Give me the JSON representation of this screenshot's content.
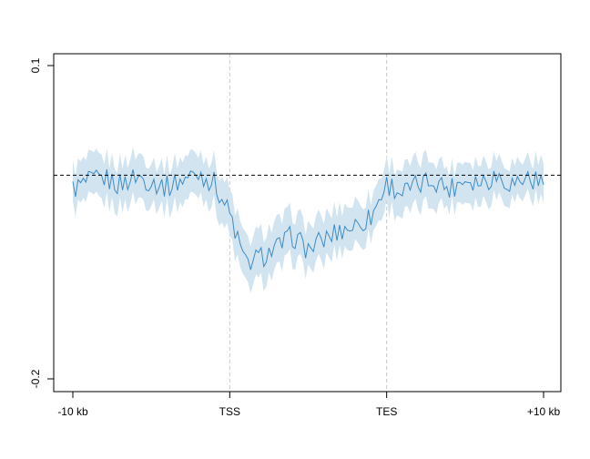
{
  "chart_data": {
    "type": "line",
    "title": "",
    "xlabel": "",
    "ylabel": "",
    "ylim": [
      -0.2,
      0.1
    ],
    "y_ticks": [
      {
        "value": 0.1,
        "label": "0.1"
      },
      {
        "value": -0.2,
        "label": "-0.2"
      }
    ],
    "x_ticks": [
      {
        "value": 0,
        "label": "-10 kb"
      },
      {
        "value": 1,
        "label": "TSS"
      },
      {
        "value": 2,
        "label": "TES"
      },
      {
        "value": 3,
        "label": "+10 kb"
      }
    ],
    "xlim": [
      0,
      3
    ],
    "reference_line": -0.005,
    "vertical_lines": [
      1,
      2
    ],
    "grid": false,
    "colors": {
      "line": "#3d8bc4",
      "band": "#d2e4f0",
      "reference": "#000000",
      "vlines": "#c8c8c8"
    },
    "series": [
      {
        "x": [
          0.0,
          0.1,
          0.2,
          0.3,
          0.4,
          0.5,
          0.6,
          0.7,
          0.8,
          0.9,
          1.0,
          1.1,
          1.2,
          1.3,
          1.4,
          1.5,
          1.6,
          1.7,
          1.8,
          1.9,
          2.0,
          2.1,
          2.2,
          2.3,
          2.4,
          2.5,
          2.6,
          2.7,
          2.8,
          2.9,
          3.0
        ],
        "values": [
          -0.018,
          -0.012,
          -0.008,
          -0.014,
          -0.006,
          -0.011,
          -0.016,
          -0.009,
          -0.003,
          -0.012,
          -0.042,
          -0.09,
          -0.083,
          -0.075,
          -0.063,
          -0.076,
          -0.067,
          -0.058,
          -0.053,
          -0.045,
          -0.013,
          -0.022,
          -0.015,
          -0.009,
          -0.018,
          -0.008,
          -0.011,
          -0.005,
          -0.013,
          -0.007,
          -0.014
        ],
        "lower": [
          -0.037,
          -0.031,
          -0.03,
          -0.036,
          -0.027,
          -0.03,
          -0.037,
          -0.031,
          -0.021,
          -0.034,
          -0.064,
          -0.112,
          -0.107,
          -0.098,
          -0.084,
          -0.096,
          -0.088,
          -0.077,
          -0.072,
          -0.063,
          -0.034,
          -0.044,
          -0.037,
          -0.031,
          -0.035,
          -0.028,
          -0.031,
          -0.023,
          -0.029,
          -0.023,
          -0.032
        ],
        "upper": [
          0.002,
          0.009,
          0.012,
          0.006,
          0.016,
          0.01,
          0.004,
          0.012,
          0.018,
          0.009,
          -0.02,
          -0.068,
          -0.06,
          -0.052,
          -0.04,
          -0.054,
          -0.045,
          -0.036,
          -0.031,
          -0.026,
          0.008,
          0.001,
          0.008,
          0.013,
          0.001,
          0.011,
          0.008,
          0.014,
          0.006,
          0.012,
          0.006
        ]
      }
    ]
  }
}
